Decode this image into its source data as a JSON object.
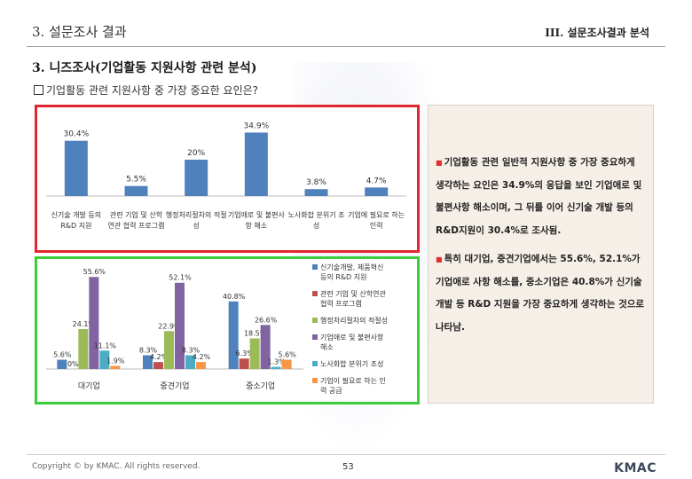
{
  "header": {
    "section": "3. 설문조사 결과",
    "chapter": "III. 설문조사결과 분석"
  },
  "subtitle": "3. 니즈조사(기업활동 지원사항 관련 분석)",
  "question": "기업활동 관련 지원사항 중 가장 중요한 요인은?",
  "summary": {
    "paragraphs": [
      "기업활동 관련 일반적 지원사항 중 가장 중요하게 생각하는 요인은 34.9%의 응답을 보인 기업애로 및 불편사항 해소이며, 그 뒤를 이어 신기술 개발 등의 R&D지원이 30.4%로 조사됨.",
      "특히 대기업, 중견기업에서는 55.6%, 52.1%가 기업애로 사항 해소를, 중소기업은 40.8%가 신기술 개발 등 R&D 지원을 가장 중요하게 생각하는 것으로 나타남."
    ]
  },
  "footer": {
    "copyright": "Copyright © by KMAC. All rights reserved.",
    "page": "53",
    "logo": "KMAC"
  },
  "colors": {
    "red_border": "#e0262e",
    "green_border": "#3ccd3c",
    "bar_blue": "#4f81bd"
  },
  "chart_data": [
    {
      "type": "bar",
      "categories": [
        "신기술 개발 등의 R&D 지원",
        "관련 기업 및 산학연관 협력 프로그램",
        "행정처리절차의 적절성",
        "기업애로 및 불편사항 해소",
        "노사화합 분위기 조성",
        "기업에 필요로 하는 인력"
      ],
      "values": [
        30.4,
        5.5,
        20.0,
        34.9,
        3.8,
        4.7
      ],
      "labels": [
        "30.4%",
        "5.5%",
        "20%",
        "34.9%",
        "3.8%",
        "4.7%"
      ],
      "ylim": [
        0,
        40
      ]
    },
    {
      "type": "bar",
      "categories": [
        "대기업",
        "중견기업",
        "중소기업"
      ],
      "series": [
        {
          "name": "신기술개발, 제품혁신 등의 R&D 지원",
          "color": "#4f81bd",
          "values": [
            5.6,
            8.3,
            40.8
          ],
          "labels": [
            "5.6%",
            "8.3%",
            "40.8%"
          ]
        },
        {
          "name": "관련 기업 및 산학연관 협력 프로그램",
          "color": "#c0504d",
          "values": [
            0.0,
            4.2,
            6.3
          ],
          "labels": [
            "0%",
            "4.2%",
            "6.3%"
          ]
        },
        {
          "name": "행정처리절차의 적절성",
          "color": "#9bbb59",
          "values": [
            24.1,
            22.9,
            18.5
          ],
          "labels": [
            "24.1%",
            "22.9%",
            "18.5%"
          ]
        },
        {
          "name": "기업애로 및 불편사항 해소",
          "color": "#8064a2",
          "values": [
            55.6,
            52.1,
            26.6
          ],
          "labels": [
            "55.6%",
            "52.1%",
            "26.6%"
          ]
        },
        {
          "name": "노사화합 분위기 조성",
          "color": "#4bacc6",
          "values": [
            11.1,
            8.3,
            1.3
          ],
          "labels": [
            "11.1%",
            "8.3%",
            "1.3%"
          ]
        },
        {
          "name": "기업이 필요로 하는 인력 공급",
          "color": "#f79646",
          "values": [
            1.9,
            4.2,
            5.6
          ],
          "labels": [
            "1.9%",
            "4.2%",
            "5.6%"
          ]
        }
      ],
      "ylim": [
        0,
        60
      ]
    }
  ]
}
